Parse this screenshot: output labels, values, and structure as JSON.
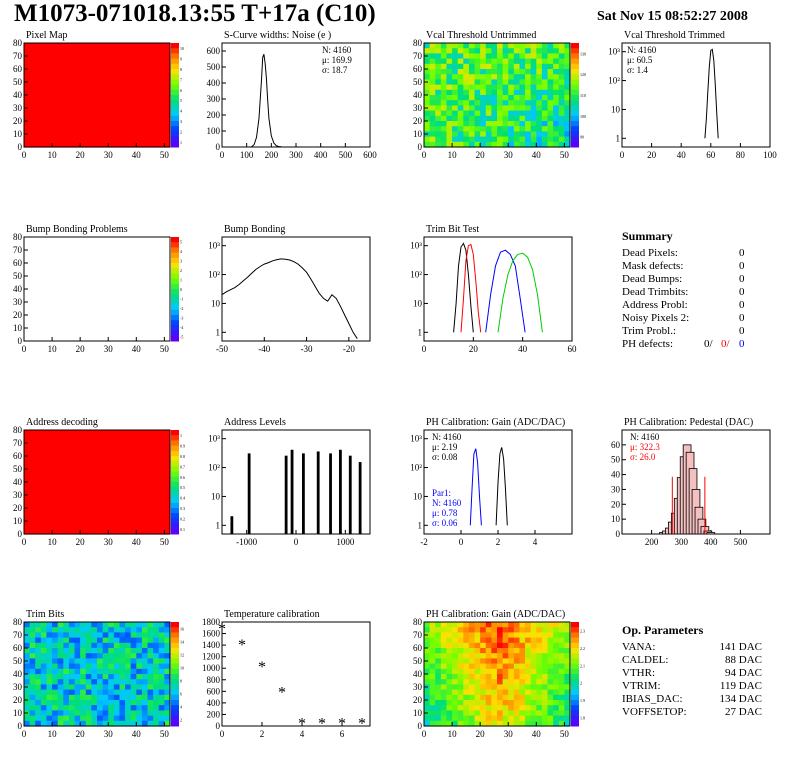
{
  "header": {
    "title": "M1073-071018.13:55 T+17a (C10)",
    "date": "Sat Nov 15 08:52:27 2008"
  },
  "palette": {
    "red": "#ff0000",
    "blue": "#0000ff",
    "green": "#00cc00",
    "black": "#000000"
  },
  "summary": {
    "heading": "Summary",
    "rows": [
      {
        "label": "Dead Pixels:",
        "value": "0"
      },
      {
        "label": "Mask defects:",
        "value": "0"
      },
      {
        "label": "Dead Bumps:",
        "value": "0"
      },
      {
        "label": "Dead Trimbits:",
        "value": "0"
      },
      {
        "label": "Address Probl:",
        "value": "0"
      },
      {
        "label": "Noisy Pixels 2:",
        "value": "0"
      },
      {
        "label": "Trim Probl.:",
        "value": "0"
      }
    ],
    "ph_defects": {
      "label": "PH defects:",
      "v1": "0/",
      "v2": "0/",
      "v3": "0"
    }
  },
  "op_params": {
    "heading": "Op. Parameters",
    "rows": [
      {
        "label": "VANA:",
        "value": "141 DAC"
      },
      {
        "label": "CALDEL:",
        "value": "88 DAC"
      },
      {
        "label": "VTHR:",
        "value": "94 DAC"
      },
      {
        "label": "VTRIM:",
        "value": "119 DAC"
      },
      {
        "label": "IBIAS_DAC:",
        "value": "134 DAC"
      },
      {
        "label": "VOFFSETOP:",
        "value": "27 DAC"
      }
    ]
  },
  "chart_data": [
    {
      "id": "pixel-map",
      "type": "heatmap",
      "title": "Pixel Map",
      "xlim": [
        0,
        52
      ],
      "ylim": [
        0,
        80
      ],
      "xticks": [
        "0",
        "10",
        "20",
        "30",
        "40",
        "50"
      ],
      "yticks": [
        "0",
        "10",
        "20",
        "30",
        "40",
        "50",
        "60",
        "70",
        "80"
      ],
      "fill": "uniform-max",
      "color": "#ff0000",
      "zticks": [
        "1",
        "2",
        "3",
        "4",
        "5",
        "6",
        "7",
        "8",
        "9",
        "10"
      ]
    },
    {
      "id": "scurve-noise",
      "type": "line",
      "title": "S-Curve widths: Noise (e )",
      "xlim": [
        0,
        600
      ],
      "ylim": [
        0,
        650
      ],
      "xticks": [
        "0",
        "100",
        "200",
        "300",
        "400",
        "500",
        "600"
      ],
      "yticks": [
        "0",
        "100",
        "200",
        "300",
        "400",
        "500",
        "600"
      ],
      "stats": [
        "N: 4160",
        "μ: 169.9",
        "σ: 18.7"
      ],
      "series": [
        {
          "color": "#000000",
          "x": [
            120,
            130,
            140,
            150,
            160,
            165,
            170,
            175,
            180,
            185,
            190,
            200,
            210,
            220,
            230,
            240
          ],
          "y": [
            2,
            15,
            60,
            180,
            420,
            560,
            580,
            520,
            430,
            300,
            180,
            70,
            25,
            8,
            3,
            1
          ]
        }
      ]
    },
    {
      "id": "vcal-untrimmed",
      "type": "heatmap",
      "title": "Vcal Threshold Untrimmed",
      "xlim": [
        0,
        52
      ],
      "ylim": [
        0,
        80
      ],
      "xticks": [
        "0",
        "10",
        "20",
        "30",
        "40",
        "50"
      ],
      "yticks": [
        "0",
        "10",
        "20",
        "30",
        "40",
        "50",
        "60",
        "70",
        "80"
      ],
      "fill": "noisy",
      "zticks": [
        "90",
        "100",
        "110",
        "120",
        "130"
      ]
    },
    {
      "id": "vcal-trimmed",
      "type": "line",
      "title": "Vcal Threshold Trimmed",
      "xlim": [
        0,
        100
      ],
      "ylog": true,
      "ylim": [
        0.5,
        2000
      ],
      "xticks": [
        "0",
        "20",
        "40",
        "60",
        "80",
        "100"
      ],
      "yticks": [
        "1",
        "10",
        "10²",
        "10³"
      ],
      "stats": [
        "N: 4160",
        "μ: 60.5",
        "σ:  1.4"
      ],
      "series": [
        {
          "color": "#000000",
          "x": [
            56,
            57,
            58,
            59,
            60,
            61,
            62,
            63,
            64,
            65
          ],
          "y": [
            1,
            5,
            40,
            300,
            1100,
            1200,
            500,
            80,
            8,
            1
          ]
        }
      ]
    },
    {
      "id": "bump-problems",
      "type": "heatmap",
      "title": "Bump Bonding Problems",
      "xlim": [
        0,
        52
      ],
      "ylim": [
        0,
        80
      ],
      "xticks": [
        "0",
        "10",
        "20",
        "30",
        "40",
        "50"
      ],
      "yticks": [
        "0",
        "10",
        "20",
        "30",
        "40",
        "50",
        "60",
        "70",
        "80"
      ],
      "fill": "empty",
      "zticks": [
        "-5",
        "-4",
        "-3",
        "-2",
        "-1",
        "0",
        "1",
        "2",
        "3",
        "4",
        "5"
      ]
    },
    {
      "id": "bump-bonding",
      "type": "line",
      "title": "Bump Bonding",
      "xlim": [
        -50,
        -15
      ],
      "ylog": true,
      "ylim": [
        0.5,
        2000
      ],
      "xticks": [
        "-50",
        "-40",
        "-30",
        "-20"
      ],
      "yticks": [
        "1",
        "10",
        "10²",
        "10³"
      ],
      "series": [
        {
          "color": "#000000",
          "x": [
            -50,
            -49,
            -48,
            -47,
            -46,
            -45,
            -44,
            -43,
            -42,
            -41,
            -40,
            -39,
            -38,
            -37,
            -36,
            -35,
            -34,
            -33,
            -32,
            -31,
            -30,
            -29,
            -28,
            -27,
            -26,
            -25,
            -24,
            -23,
            -22,
            -21,
            -20,
            -19,
            -18
          ],
          "y": [
            20,
            25,
            30,
            35,
            45,
            60,
            80,
            110,
            150,
            190,
            230,
            260,
            300,
            330,
            350,
            340,
            320,
            280,
            230,
            170,
            120,
            70,
            40,
            22,
            15,
            12,
            20,
            15,
            8,
            4,
            2,
            1,
            0.6
          ]
        }
      ]
    },
    {
      "id": "trim-bit-test",
      "type": "line",
      "title": "Trim Bit Test",
      "xlim": [
        0,
        60
      ],
      "ylog": true,
      "ylim": [
        0.5,
        2000
      ],
      "xticks": [
        "0",
        "20",
        "40",
        "60"
      ],
      "yticks": [
        "1",
        "10",
        "10²",
        "10³"
      ],
      "series": [
        {
          "color": "#000000",
          "x": [
            12,
            13,
            14,
            15,
            16,
            17,
            18,
            19,
            20
          ],
          "y": [
            1,
            10,
            200,
            900,
            1200,
            700,
            100,
            8,
            1
          ]
        },
        {
          "color": "#ff0000",
          "x": [
            15,
            16,
            17,
            18,
            19,
            20,
            21,
            22,
            23
          ],
          "y": [
            1,
            15,
            300,
            1000,
            1100,
            500,
            60,
            5,
            1
          ]
        },
        {
          "color": "#0000ff",
          "x": [
            25,
            27,
            29,
            31,
            33,
            35,
            37,
            39,
            41
          ],
          "y": [
            1,
            20,
            200,
            600,
            700,
            500,
            200,
            15,
            1
          ]
        },
        {
          "color": "#00cc00",
          "x": [
            30,
            32,
            34,
            36,
            38,
            40,
            42,
            44,
            46,
            48
          ],
          "y": [
            1,
            15,
            100,
            300,
            500,
            550,
            400,
            150,
            20,
            1
          ]
        }
      ]
    },
    {
      "id": "address-decoding",
      "type": "heatmap",
      "title": "Address decoding",
      "xlim": [
        0,
        52
      ],
      "ylim": [
        0,
        80
      ],
      "xticks": [
        "0",
        "10",
        "20",
        "30",
        "40",
        "50"
      ],
      "yticks": [
        "0",
        "10",
        "20",
        "30",
        "40",
        "50",
        "60",
        "70",
        "80"
      ],
      "fill": "uniform-max",
      "color": "#ff0000",
      "zticks": [
        "0.1",
        "0.2",
        "0.3",
        "0.4",
        "0.5",
        "0.6",
        "0.7",
        "0.8",
        "0.9",
        "1"
      ]
    },
    {
      "id": "address-levels",
      "type": "bar",
      "title": "Address Levels",
      "xlim": [
        -1500,
        1500
      ],
      "ylog": true,
      "ylim": [
        0.5,
        2000
      ],
      "xticks": [
        "-1000",
        "0",
        "1000"
      ],
      "yticks": [
        "1",
        "10",
        "10²",
        "10³"
      ],
      "series": [
        {
          "color": "#000000",
          "x": [
            -1300,
            -950,
            -200,
            -80,
            150,
            450,
            700,
            900,
            1100,
            1300
          ],
          "y": [
            2,
            300,
            250,
            400,
            300,
            350,
            300,
            400,
            250,
            150
          ]
        }
      ]
    },
    {
      "id": "ph-gain",
      "type": "line",
      "title": "PH Calibration: Gain (ADC/DAC)",
      "xlim": [
        -2,
        6
      ],
      "ylog": true,
      "ylim": [
        0.5,
        2000
      ],
      "xticks": [
        "-2",
        "0",
        "2",
        "4"
      ],
      "yticks": [
        "1",
        "10",
        "10²",
        "10³"
      ],
      "stats": [
        "N: 4160",
        "μ: 2.19",
        "σ: 0.08"
      ],
      "stats2": [
        "Par1:",
        "N: 4160",
        "μ: 0.78",
        "σ: 0.06"
      ],
      "series": [
        {
          "color": "#000000",
          "x": [
            1.9,
            2.0,
            2.1,
            2.2,
            2.3,
            2.4,
            2.5
          ],
          "y": [
            1,
            30,
            300,
            500,
            200,
            20,
            1
          ]
        },
        {
          "color": "#0000ff",
          "x": [
            0.5,
            0.6,
            0.7,
            0.8,
            0.9,
            1.0,
            1.1
          ],
          "y": [
            1,
            20,
            300,
            450,
            150,
            10,
            1
          ]
        }
      ]
    },
    {
      "id": "ph-pedestal",
      "type": "bar",
      "title": "PH Calibration: Pedestal (DAC)",
      "xlim": [
        100,
        600
      ],
      "ylim": [
        0,
        70
      ],
      "xticks": [
        "200",
        "300",
        "400",
        "500"
      ],
      "yticks": [
        "0",
        "10",
        "20",
        "30",
        "40",
        "50",
        "60"
      ],
      "stats": [
        "N: 4160",
        "μ: 322.3",
        "σ: 26.0"
      ],
      "series": [
        {
          "color": "#000000",
          "x": [
            240,
            250,
            260,
            270,
            280,
            290,
            300,
            310,
            320,
            330,
            340,
            350,
            360,
            370,
            380,
            390,
            400
          ],
          "y": [
            1,
            2,
            4,
            8,
            14,
            24,
            38,
            52,
            60,
            55,
            44,
            30,
            18,
            10,
            5,
            2,
            1
          ]
        }
      ],
      "markers": [
        {
          "x": 270,
          "color": "#ff0000"
        },
        {
          "x": 380,
          "color": "#ff0000"
        }
      ]
    },
    {
      "id": "trim-bits",
      "type": "heatmap",
      "title": "Trim Bits",
      "xlim": [
        0,
        52
      ],
      "ylim": [
        0,
        80
      ],
      "xticks": [
        "0",
        "10",
        "20",
        "30",
        "40",
        "50"
      ],
      "yticks": [
        "0",
        "10",
        "20",
        "30",
        "40",
        "50",
        "60",
        "70",
        "80"
      ],
      "fill": "trim",
      "zticks": [
        "2",
        "4",
        "6",
        "8",
        "10",
        "12",
        "14",
        "16"
      ]
    },
    {
      "id": "temp-calibration",
      "type": "scatter",
      "title": "Temperature calibration",
      "xlim": [
        0,
        7.4
      ],
      "ylim": [
        0,
        1800
      ],
      "xticks": [
        "0",
        "2",
        "4",
        "6"
      ],
      "yticks": [
        "0",
        "200",
        "400",
        "600",
        "800",
        "1000",
        "1200",
        "1400",
        "1600",
        "1800"
      ],
      "series": [
        {
          "color": "#000000",
          "x": [
            0,
            1,
            2,
            3,
            4,
            5,
            6,
            7
          ],
          "y": [
            1680,
            1400,
            1020,
            580,
            40,
            40,
            40,
            40
          ]
        }
      ]
    },
    {
      "id": "ph-gain-map",
      "type": "heatmap",
      "title": "PH Calibration: Gain (ADC/DAC)",
      "xlim": [
        0,
        52
      ],
      "ylim": [
        0,
        80
      ],
      "xticks": [
        "0",
        "10",
        "20",
        "30",
        "40",
        "50"
      ],
      "yticks": [
        "0",
        "10",
        "20",
        "30",
        "40",
        "50",
        "60",
        "70",
        "80"
      ],
      "fill": "gainmap",
      "zticks": [
        "1.8",
        "1.9",
        "2",
        "2.1",
        "2.2",
        "2.3"
      ]
    }
  ]
}
